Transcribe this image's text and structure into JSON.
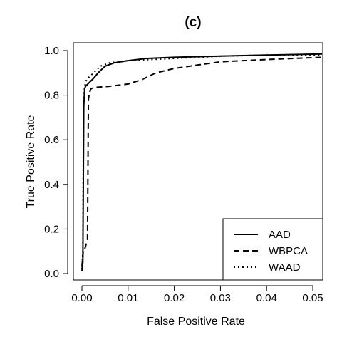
{
  "chart_data": {
    "type": "line",
    "title": "(c)",
    "xlabel": "False Positive Rate",
    "ylabel": "True Positive Rate",
    "xlim": [
      0,
      0.052
    ],
    "ylim": [
      0,
      1.0
    ],
    "x_ticks": [
      0.0,
      0.01,
      0.02,
      0.03,
      0.04,
      0.05
    ],
    "x_tick_labels": [
      "0.00",
      "0.01",
      "0.02",
      "0.03",
      "0.04",
      "0.05"
    ],
    "y_ticks": [
      0.0,
      0.2,
      0.4,
      0.6,
      0.8,
      1.0
    ],
    "y_tick_labels": [
      "0.0",
      "0.2",
      "0.4",
      "0.6",
      "0.8",
      "1.0"
    ],
    "grid": false,
    "legend_position": "bottom-right",
    "series": [
      {
        "name": "AAD",
        "line_style": "solid",
        "x": [
          0.0,
          0.0002,
          0.0004,
          0.0006,
          0.0008,
          0.0015,
          0.0025,
          0.0035,
          0.005,
          0.007,
          0.01,
          0.014,
          0.02,
          0.03,
          0.04,
          0.052
        ],
        "y": [
          0.01,
          0.05,
          0.75,
          0.83,
          0.84,
          0.855,
          0.875,
          0.9,
          0.93,
          0.945,
          0.955,
          0.965,
          0.97,
          0.975,
          0.98,
          0.985
        ]
      },
      {
        "name": "WBPCA",
        "line_style": "dashed",
        "x": [
          0.0,
          0.0003,
          0.0006,
          0.0009,
          0.0012,
          0.0014,
          0.0016,
          0.002,
          0.003,
          0.006,
          0.01,
          0.013,
          0.016,
          0.02,
          0.025,
          0.03,
          0.04,
          0.052
        ],
        "y": [
          0.03,
          0.1,
          0.11,
          0.13,
          0.15,
          0.78,
          0.81,
          0.83,
          0.835,
          0.84,
          0.85,
          0.87,
          0.9,
          0.92,
          0.935,
          0.95,
          0.96,
          0.97
        ]
      },
      {
        "name": "WAAD",
        "line_style": "dotted",
        "x": [
          0.0,
          0.0002,
          0.0003,
          0.0004,
          0.0006,
          0.001,
          0.002,
          0.003,
          0.004,
          0.006,
          0.01,
          0.015,
          0.02,
          0.03,
          0.04,
          0.052
        ],
        "y": [
          0.02,
          0.1,
          0.5,
          0.8,
          0.84,
          0.87,
          0.89,
          0.91,
          0.93,
          0.945,
          0.955,
          0.96,
          0.965,
          0.975,
          0.98,
          0.98
        ]
      }
    ]
  }
}
